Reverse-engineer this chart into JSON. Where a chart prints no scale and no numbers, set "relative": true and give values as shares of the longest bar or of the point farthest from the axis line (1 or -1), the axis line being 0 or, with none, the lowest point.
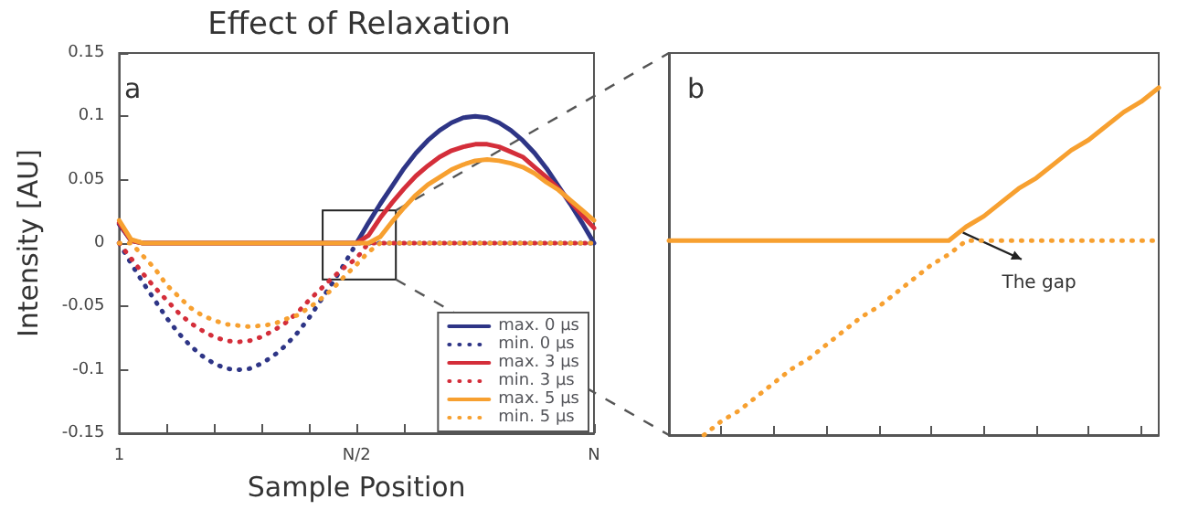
{
  "chart_data": [
    {
      "type": "line",
      "title": "Effect of Relaxation",
      "xlabel": "Sample Position",
      "ylabel": "Intensity [AU]",
      "annotations": [
        "a"
      ],
      "categories": [
        "1",
        null,
        null,
        null,
        null,
        null,
        null,
        null,
        null,
        null,
        null,
        null,
        null,
        null,
        null,
        null,
        null,
        null,
        null,
        null,
        "N/2",
        null,
        null,
        null,
        null,
        null,
        null,
        null,
        null,
        null,
        null,
        null,
        null,
        null,
        null,
        null,
        null,
        null,
        null,
        null,
        "N"
      ],
      "ylim": [
        -0.15,
        0.15
      ],
      "yticks": [
        -0.15,
        -0.1,
        -0.05,
        0,
        0.05,
        0.1,
        0.15
      ],
      "grid": false,
      "legend": "bottom right",
      "marker": "none",
      "series": [
        {
          "name": "max. 0 µs",
          "color": "#2e3586",
          "line_style": "solid",
          "values": [
            0.015,
            0.002,
            0,
            0,
            0,
            0,
            0,
            0,
            0,
            0,
            0,
            0,
            0,
            0,
            0,
            0,
            0,
            0,
            0,
            0,
            0,
            0.016,
            0.031,
            0.045,
            0.059,
            0.071,
            0.081,
            0.089,
            0.095,
            0.099,
            0.1,
            0.099,
            0.095,
            0.089,
            0.081,
            0.071,
            0.059,
            0.045,
            0.031,
            0.016,
            0
          ]
        },
        {
          "name": "min. 0 µs",
          "color": "#2e3586",
          "line_style": "dotted",
          "values": [
            0,
            -0.016,
            -0.031,
            -0.045,
            -0.059,
            -0.071,
            -0.081,
            -0.089,
            -0.095,
            -0.099,
            -0.1,
            -0.099,
            -0.095,
            -0.089,
            -0.081,
            -0.071,
            -0.059,
            -0.045,
            -0.031,
            -0.016,
            0,
            0,
            0,
            0,
            0,
            0,
            0,
            0,
            0,
            0,
            0,
            0,
            0,
            0,
            0,
            0,
            0,
            0,
            0,
            0,
            0
          ]
        },
        {
          "name": "max. 3 µs",
          "color": "#d42e3a",
          "line_style": "solid",
          "values": [
            0.016,
            0.002,
            0,
            0,
            0,
            0,
            0,
            0,
            0,
            0,
            0,
            0,
            0,
            0,
            0,
            0,
            0,
            0,
            0,
            0,
            0,
            0.006,
            0.02,
            0.032,
            0.043,
            0.053,
            0.061,
            0.068,
            0.073,
            0.076,
            0.078,
            0.078,
            0.076,
            0.072,
            0.068,
            0.06,
            0.052,
            0.043,
            0.033,
            0.022,
            0.012
          ]
        },
        {
          "name": "min. 3 µs",
          "color": "#d42e3a",
          "line_style": "dotted",
          "values": [
            0,
            -0.012,
            -0.024,
            -0.035,
            -0.045,
            -0.055,
            -0.063,
            -0.069,
            -0.074,
            -0.077,
            -0.078,
            -0.077,
            -0.074,
            -0.069,
            -0.063,
            -0.055,
            -0.045,
            -0.036,
            -0.027,
            -0.019,
            -0.012,
            0,
            0,
            0,
            0,
            0,
            0,
            0,
            0,
            0,
            0,
            0,
            0,
            0,
            0,
            0,
            0,
            0,
            0,
            0,
            0
          ]
        },
        {
          "name": "max. 5 µs",
          "color": "#f7a030",
          "line_style": "solid",
          "values": [
            0.018,
            0.003,
            0,
            0,
            0,
            0,
            0,
            0,
            0,
            0,
            0,
            0,
            0,
            0,
            0,
            0,
            0,
            0,
            0,
            0,
            0,
            0,
            0.005,
            0.017,
            0.028,
            0.038,
            0.046,
            0.052,
            0.058,
            0.062,
            0.065,
            0.066,
            0.065,
            0.063,
            0.06,
            0.055,
            0.048,
            0.042,
            0.034,
            0.026,
            0.018
          ]
        },
        {
          "name": "min. 5 µs",
          "color": "#f7a030",
          "line_style": "dotted",
          "values": [
            0,
            0,
            -0.01,
            -0.02,
            -0.033,
            -0.042,
            -0.051,
            -0.057,
            -0.061,
            -0.064,
            -0.065,
            -0.066,
            -0.065,
            -0.064,
            -0.06,
            -0.057,
            -0.051,
            -0.044,
            -0.036,
            -0.026,
            -0.017,
            -0.007,
            0,
            0,
            0,
            0,
            0,
            0,
            0,
            0,
            0,
            0,
            0,
            0,
            0,
            0,
            0,
            0,
            0,
            0,
            0
          ]
        }
      ]
    },
    {
      "type": "line",
      "annotations": [
        "b",
        "The gap"
      ],
      "relative": true,
      "grid": false,
      "marker": "none",
      "categories": [
        null,
        null,
        null,
        null,
        null,
        null,
        null,
        null,
        null,
        null,
        null,
        null,
        null,
        null,
        null,
        null,
        null,
        null,
        null,
        null,
        null,
        null,
        null,
        null,
        null,
        null,
        null,
        null,
        null
      ],
      "series": [
        {
          "color": "#f7a030",
          "line_style": "solid",
          "values": [
            0.56,
            0.56,
            0.56,
            0.56,
            0.56,
            0.56,
            0.56,
            0.56,
            0.56,
            0.56,
            0.56,
            0.56,
            0.56,
            0.56,
            0.56,
            0.56,
            0.56,
            0.6,
            0.63,
            0.67,
            0.71,
            0.74,
            0.78,
            0.82,
            0.85,
            0.89,
            0.93,
            0.96,
            1
          ]
        },
        {
          "color": "#f7a030",
          "line_style": "dotted",
          "values": [
            null,
            null,
            0,
            0.04,
            0.07,
            0.11,
            0.15,
            0.19,
            0.22,
            0.26,
            0.3,
            0.34,
            0.37,
            0.41,
            0.45,
            0.49,
            0.52,
            0.56,
            0.56,
            0.56,
            0.56,
            0.56,
            0.56,
            0.56,
            0.56,
            0.56,
            0.56,
            0.56,
            0.56
          ]
        }
      ]
    }
  ]
}
